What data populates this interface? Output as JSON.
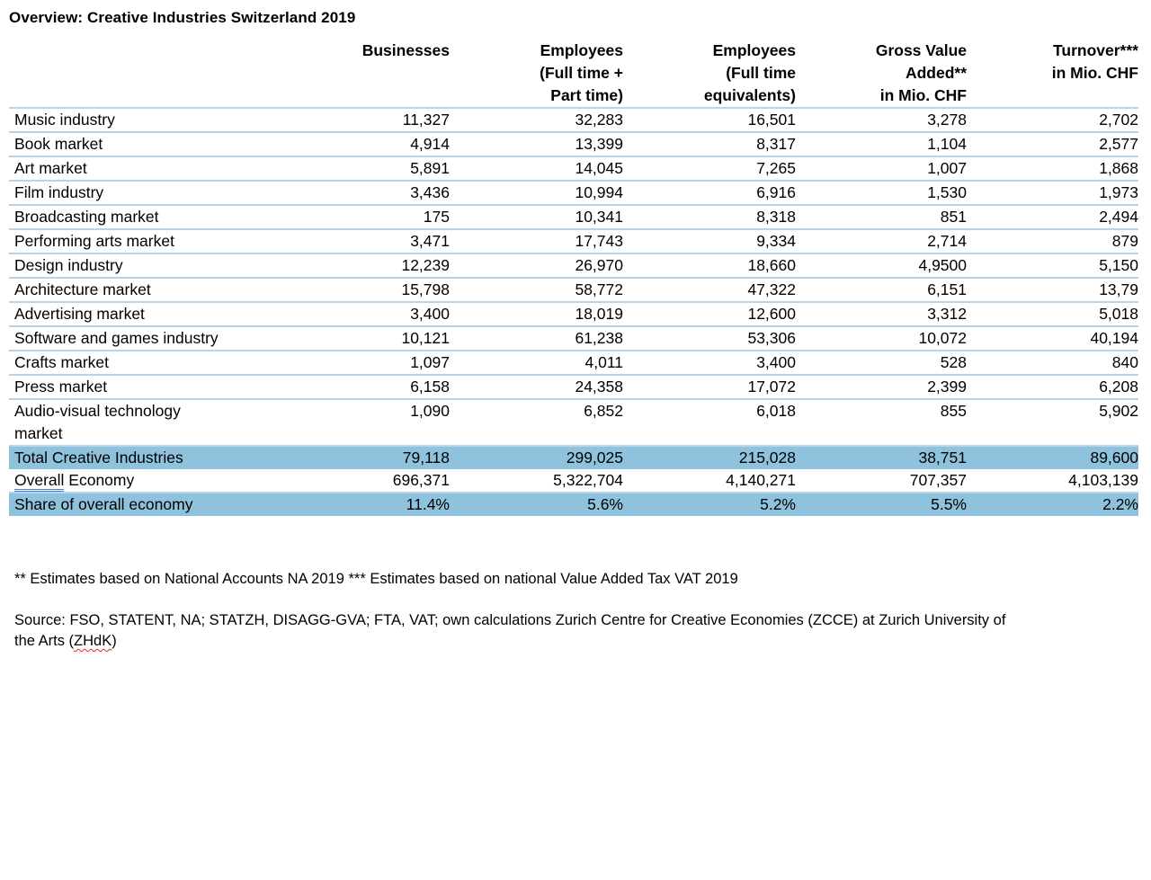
{
  "title": "Overview: Creative Industries Switzerland 2019",
  "colors": {
    "highlight_row_bg": "#8FC2DC",
    "row_separator": "#B5D6EA",
    "grammar_underline": "#4D7ED0",
    "spellcheck_underline": "#E02B20"
  },
  "table": {
    "header": {
      "label": "",
      "columns": [
        "Businesses",
        "Employees\n(Full time +\nPart time)",
        "Employees\n(Full time\nequivalents)",
        "Gross Value\nAdded**\nin Mio. CHF",
        "Turnover***\nin Mio. CHF"
      ]
    },
    "rows": [
      {
        "label": "Music industry",
        "values": [
          "11,327",
          "32,283",
          "16,501",
          "3,278",
          "2,702"
        ],
        "highlight": false
      },
      {
        "label": "Book market",
        "values": [
          "4,914",
          "13,399",
          "8,317",
          "1,104",
          "2,577"
        ],
        "highlight": false
      },
      {
        "label": "Art market",
        "values": [
          "5,891",
          "14,045",
          "7,265",
          "1,007",
          "1,868"
        ],
        "highlight": false
      },
      {
        "label": "Film industry",
        "values": [
          "3,436",
          "10,994",
          "6,916",
          "1,530",
          "1,973"
        ],
        "highlight": false
      },
      {
        "label": "Broadcasting market",
        "values": [
          "175",
          "10,341",
          "8,318",
          "851",
          "2,494"
        ],
        "highlight": false
      },
      {
        "label": "Performing arts market",
        "values": [
          "3,471",
          "17,743",
          "9,334",
          "2,714",
          "879"
        ],
        "highlight": false
      },
      {
        "label": "Design industry",
        "values": [
          "12,239",
          "26,970",
          "18,660",
          "4,9500",
          "5,150"
        ],
        "highlight": false
      },
      {
        "label": "Architecture market",
        "values": [
          "15,798",
          "58,772",
          "47,322",
          "6,151",
          "13,79"
        ],
        "highlight": false
      },
      {
        "label": "Advertising market",
        "values": [
          "3,400",
          "18,019",
          "12,600",
          "3,312",
          "5,018"
        ],
        "highlight": false
      },
      {
        "label": "Software and games industry",
        "values": [
          "10,121",
          "61,238",
          "53,306",
          "10,072",
          "40,194"
        ],
        "highlight": false
      },
      {
        "label": "Crafts market",
        "values": [
          "1,097",
          "4,011",
          "3,400",
          "528",
          "840"
        ],
        "highlight": false
      },
      {
        "label": "Press market",
        "values": [
          "6,158",
          "24,358",
          "17,072",
          "2,399",
          "6,208"
        ],
        "highlight": false
      },
      {
        "label": "Audio-visual technology\nmarket",
        "values": [
          "1,090",
          "6,852",
          "6,018",
          "855",
          "5,902"
        ],
        "highlight": false
      },
      {
        "label": "Total Creative Industries",
        "values": [
          "79,118",
          "299,025",
          "215,028",
          "38,751",
          "89,600"
        ],
        "highlight": true
      },
      {
        "label_parts": [
          {
            "text": "Overall",
            "decoration": "grammar"
          },
          {
            "text": " Economy"
          }
        ],
        "values": [
          "696,371",
          "5,322,704",
          "4,140,271",
          "707,357",
          "4,103,139"
        ],
        "highlight": false
      },
      {
        "label": "Share of overall economy",
        "values": [
          "11.4%",
          "5.6%",
          "5.2%",
          "5.5%",
          "2.2%"
        ],
        "highlight": true
      }
    ]
  },
  "footnotes": {
    "line1": "** Estimates based on National Accounts NA 2019 *** Estimates based on national Value Added Tax VAT 2019",
    "source_parts": [
      {
        "text": "Source: FSO, STATENT, NA; STATZH, DISAGG-GVA; FTA, VAT; own calculations Zurich Centre for Creative Economies (ZCCE) at Zurich University of\nthe Arts ("
      },
      {
        "text": "ZHdK",
        "decoration": "spellcheck"
      },
      {
        "text": ")"
      }
    ]
  }
}
